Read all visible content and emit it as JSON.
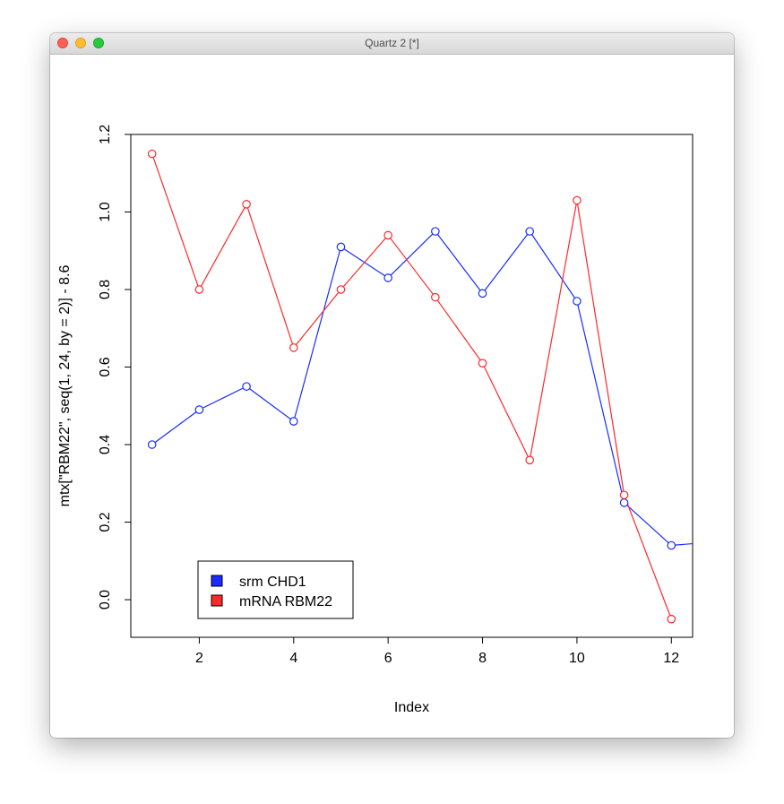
{
  "window": {
    "title": "Quartz 2 [*]",
    "buttons": [
      "close",
      "minimize",
      "zoom"
    ]
  },
  "chart_data": {
    "type": "line",
    "xlabel": "Index",
    "ylabel": "mtx[\"RBM22\", seq(1, 24, by = 2)] - 8.6",
    "xlim": [
      0.55,
      12.45
    ],
    "ylim": [
      -0.097,
      1.2
    ],
    "x_ticks": [
      "2",
      "4",
      "6",
      "8",
      "10",
      "12"
    ],
    "y_ticks": [
      "0.0",
      "0.2",
      "0.4",
      "0.6",
      "0.8",
      "1.0",
      "1.2"
    ],
    "x": [
      1,
      2,
      3,
      4,
      5,
      6,
      7,
      8,
      9,
      10,
      11,
      12
    ],
    "series": [
      {
        "name": "srm CHD1",
        "color": "#1a2cff",
        "values": [
          0.4,
          0.49,
          0.55,
          0.46,
          0.91,
          0.83,
          0.95,
          0.79,
          0.95,
          0.77,
          0.25,
          0.14
        ],
        "line_extends_to": 0.15
      },
      {
        "name": "mRNA RBM22",
        "color": "#ff2828",
        "values": [
          1.15,
          0.8,
          1.02,
          0.65,
          0.8,
          0.94,
          0.78,
          0.61,
          0.36,
          1.03,
          0.27,
          -0.05
        ]
      }
    ],
    "legend_position": "bottom-left",
    "grid": false
  }
}
